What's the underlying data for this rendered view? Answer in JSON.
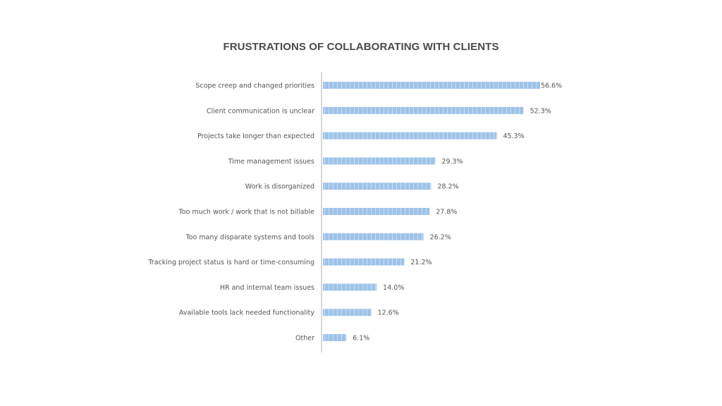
{
  "chart_data": {
    "type": "bar",
    "orientation": "horizontal",
    "title": "FRUSTRATIONS OF COLLABORATING WITH CLIENTS",
    "xlabel": "",
    "ylabel": "",
    "xlim": [
      0,
      60
    ],
    "grid": false,
    "legend": "none",
    "bar_color": "#9fc3e8",
    "bar_pattern_color": "#c9ddf2",
    "axis_color": "#b0b0b0",
    "categories": [
      "Scope creep and changed priorities",
      "Client communication is unclear",
      "Projects take longer than expected",
      "Time management issues",
      "Work is disorganized",
      "Too much work / work that is not billable",
      "Too many disparate systems and tools",
      "Tracking project status is hard or time-consuming",
      "HR and internal team issues",
      "Available tools lack needed functionality",
      "Other"
    ],
    "values": [
      56.6,
      52.3,
      45.3,
      29.3,
      28.2,
      27.8,
      26.2,
      21.2,
      14.0,
      12.6,
      6.1
    ],
    "value_labels": [
      "56.6%",
      "52.3%",
      "45.3%",
      "29.3%",
      "28.2%",
      "27.8%",
      "26.2%",
      "21.2%",
      "14.0%",
      "12.6%",
      "6.1%"
    ]
  }
}
